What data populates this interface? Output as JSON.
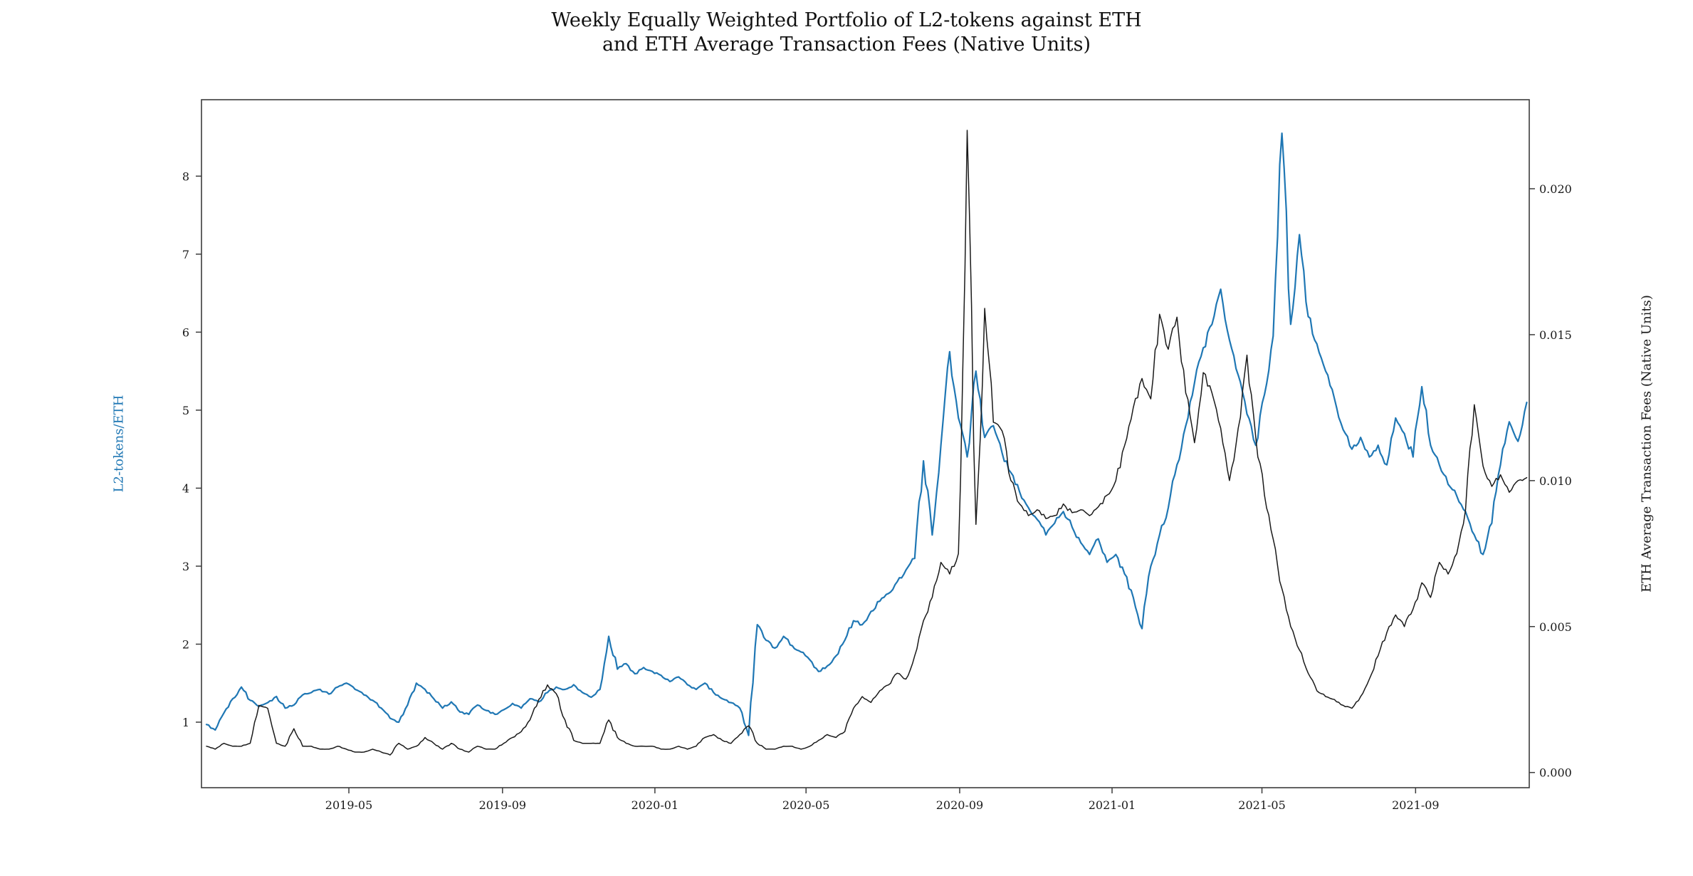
{
  "title": {
    "line1": "Weekly Equally Weighted Portfolio of L2-tokens against ETH",
    "line2": "and ETH Average Transaction Fees (Native Units)"
  },
  "left_axis": {
    "label": "L2-tokens/ETH",
    "color": "#1f77b4",
    "tick_labels": [
      "1",
      "2",
      "3",
      "4",
      "5",
      "6",
      "7",
      "8"
    ]
  },
  "right_axis": {
    "label": "ETH Average Transaction Fees (Native Units)",
    "color": "#1a1a1a",
    "tick_labels": [
      "0.000",
      "0.005",
      "0.010",
      "0.015",
      "0.020"
    ]
  },
  "x_axis": {
    "tick_labels": [
      "2019-05",
      "2019-09",
      "2020-01",
      "2020-05",
      "2020-09",
      "2021-01",
      "2021-05",
      "2021-09"
    ]
  },
  "chart_data": {
    "type": "line",
    "title": "Weekly Equally Weighted Portfolio of L2-tokens against ETH and ETH Average Transaction Fees (Native Units)",
    "x_start_date": "2019-01-07",
    "x_step_days": 7,
    "x_ticks": [
      {
        "label": "2019-05",
        "day": 120
      },
      {
        "label": "2019-09",
        "day": 243
      },
      {
        "label": "2020-01",
        "day": 365
      },
      {
        "label": "2020-05",
        "day": 486
      },
      {
        "label": "2020-09",
        "day": 609
      },
      {
        "label": "2021-01",
        "day": 731
      },
      {
        "label": "2021-05",
        "day": 851
      },
      {
        "label": "2021-09",
        "day": 974
      }
    ],
    "left_ticks": [
      1,
      2,
      3,
      4,
      5,
      6,
      7,
      8
    ],
    "right_ticks": [
      0.0,
      0.005,
      0.01,
      0.015,
      0.02
    ],
    "left_ylim": [
      0.16,
      8.98
    ],
    "right_ylim": [
      -0.00052,
      0.02305
    ],
    "x_day_range": [
      2,
      1065
    ],
    "grid": false,
    "legend": "none",
    "series": [
      {
        "name": "L2-tokens/ETH",
        "axis": "left",
        "color": "#1f77b4",
        "values": [
          0.97,
          0.9,
          1.12,
          1.3,
          1.45,
          1.28,
          1.2,
          1.25,
          1.33,
          1.18,
          1.22,
          1.35,
          1.38,
          1.42,
          1.36,
          1.45,
          1.5,
          1.42,
          1.35,
          1.28,
          1.18,
          1.05,
          1.0,
          1.22,
          1.5,
          1.42,
          1.3,
          1.18,
          1.26,
          1.13,
          1.1,
          1.22,
          1.15,
          1.1,
          1.16,
          1.24,
          1.18,
          1.3,
          1.26,
          1.38,
          1.45,
          1.42,
          1.48,
          1.38,
          1.32,
          1.42,
          2.1,
          1.68,
          1.75,
          1.62,
          1.7,
          1.65,
          1.6,
          1.52,
          1.58,
          1.48,
          1.42,
          1.5,
          1.38,
          1.3,
          1.25,
          1.18,
          0.83,
          2.25,
          2.05,
          1.95,
          2.1,
          1.98,
          1.9,
          1.8,
          1.65,
          1.72,
          1.85,
          2.05,
          2.3,
          2.25,
          2.42,
          2.55,
          2.65,
          2.8,
          2.95,
          3.1,
          4.35,
          3.4,
          4.55,
          5.75,
          4.9,
          4.4,
          5.5,
          4.65,
          4.8,
          4.45,
          4.2,
          3.95,
          3.75,
          3.6,
          3.4,
          3.55,
          3.7,
          3.5,
          3.3,
          3.15,
          3.35,
          3.05,
          3.15,
          2.9,
          2.6,
          2.2,
          3.0,
          3.4,
          3.75,
          4.3,
          4.8,
          5.35,
          5.8,
          6.1,
          6.55,
          5.9,
          5.45,
          4.95,
          4.55,
          5.2,
          5.95,
          8.55,
          6.1,
          7.25,
          6.2,
          5.85,
          5.5,
          5.15,
          4.75,
          4.5,
          4.65,
          4.4,
          4.55,
          4.3,
          4.9,
          4.7,
          4.4,
          5.3,
          4.55,
          4.3,
          4.05,
          3.9,
          3.7,
          3.4,
          3.15,
          3.55,
          4.3,
          4.85,
          4.6,
          5.1
        ]
      },
      {
        "name": "ETH Average Transaction Fees (Native Units)",
        "axis": "right",
        "color": "#1a1a1a",
        "values": [
          0.0009,
          0.0008,
          0.001,
          0.0009,
          0.0009,
          0.001,
          0.0023,
          0.0022,
          0.001,
          0.0009,
          0.0015,
          0.0009,
          0.0009,
          0.0008,
          0.0008,
          0.0009,
          0.0008,
          0.0007,
          0.0007,
          0.0008,
          0.0007,
          0.0006,
          0.001,
          0.0008,
          0.0009,
          0.0012,
          0.001,
          0.0008,
          0.001,
          0.0008,
          0.0007,
          0.0009,
          0.0008,
          0.0008,
          0.001,
          0.0012,
          0.0014,
          0.0018,
          0.0025,
          0.003,
          0.0027,
          0.0018,
          0.0011,
          0.001,
          0.001,
          0.001,
          0.0018,
          0.0012,
          0.001,
          0.0009,
          0.0009,
          0.0009,
          0.0008,
          0.0008,
          0.0009,
          0.0008,
          0.0009,
          0.0012,
          0.0013,
          0.0011,
          0.001,
          0.0013,
          0.0016,
          0.001,
          0.0008,
          0.0008,
          0.0009,
          0.0009,
          0.0008,
          0.0009,
          0.0011,
          0.0013,
          0.0012,
          0.0014,
          0.0022,
          0.0026,
          0.0024,
          0.0028,
          0.003,
          0.0034,
          0.0032,
          0.004,
          0.0052,
          0.006,
          0.0072,
          0.0068,
          0.0075,
          0.022,
          0.0085,
          0.0159,
          0.012,
          0.0117,
          0.01,
          0.0092,
          0.0088,
          0.009,
          0.0087,
          0.0088,
          0.0092,
          0.0089,
          0.009,
          0.0088,
          0.0091,
          0.0095,
          0.01,
          0.0112,
          0.0125,
          0.0135,
          0.0128,
          0.0157,
          0.0145,
          0.0156,
          0.013,
          0.0113,
          0.0137,
          0.013,
          0.0118,
          0.01,
          0.0118,
          0.0143,
          0.0115,
          0.0095,
          0.008,
          0.0063,
          0.005,
          0.0042,
          0.0034,
          0.0028,
          0.0026,
          0.0025,
          0.0023,
          0.0022,
          0.0026,
          0.0032,
          0.004,
          0.0048,
          0.0054,
          0.005,
          0.0056,
          0.0065,
          0.006,
          0.0072,
          0.0068,
          0.0075,
          0.009,
          0.0126,
          0.0105,
          0.0098,
          0.0102,
          0.0096,
          0.01,
          0.0101
        ]
      }
    ]
  }
}
